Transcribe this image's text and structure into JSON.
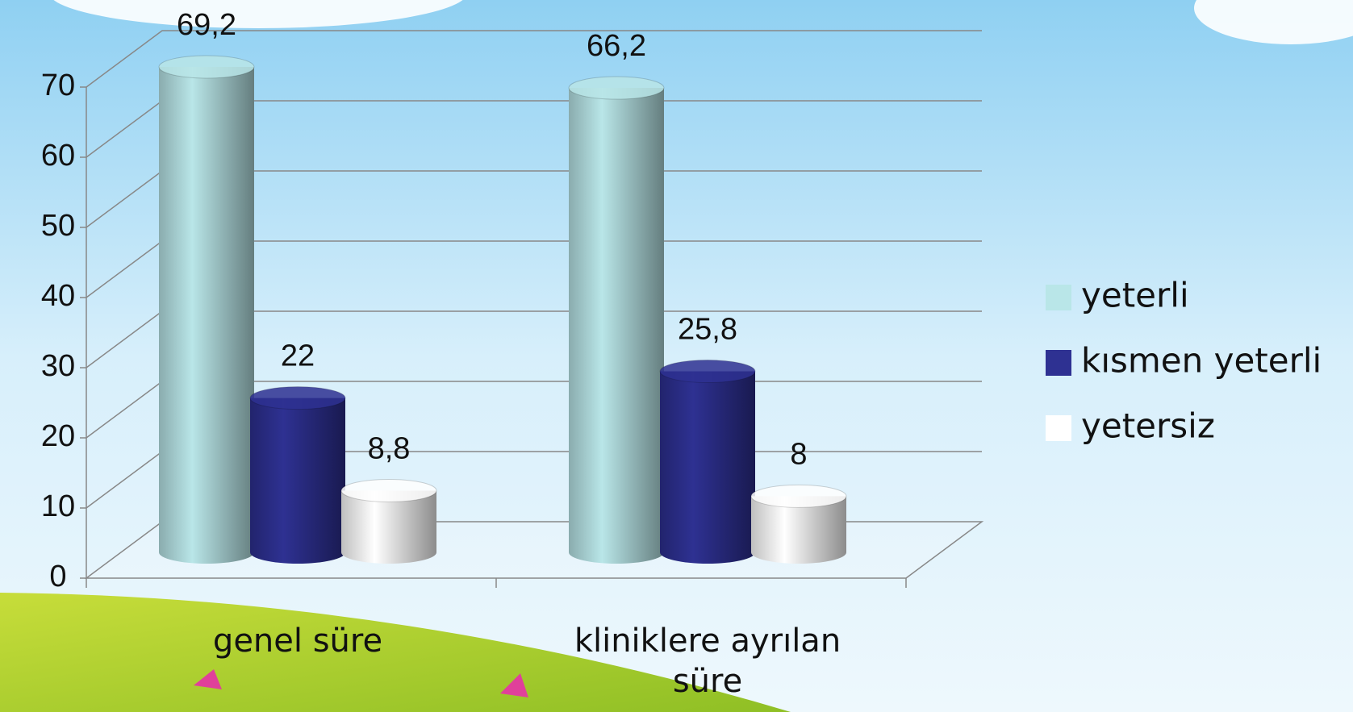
{
  "chart_data": {
    "type": "bar3d",
    "categories": [
      "genel süre",
      "kliniklere ayrılan süre"
    ],
    "series": [
      {
        "name": "yeterli",
        "color": "#b9e6e8",
        "values": [
          69.2,
          66.2
        ],
        "value_labels": [
          "69,2",
          "66,2"
        ]
      },
      {
        "name": "kısmen yeterli",
        "color": "#2e3192",
        "values": [
          22,
          25.8
        ],
        "value_labels": [
          "22",
          "25,8"
        ]
      },
      {
        "name": "yetersiz",
        "color": "#ffffff",
        "values": [
          8.8,
          8
        ],
        "value_labels": [
          "8,8",
          "8"
        ]
      }
    ],
    "ylim": [
      0,
      70
    ],
    "yticks": [
      0,
      10,
      20,
      30,
      40,
      50,
      60,
      70
    ],
    "grid": true,
    "legend": "right"
  }
}
